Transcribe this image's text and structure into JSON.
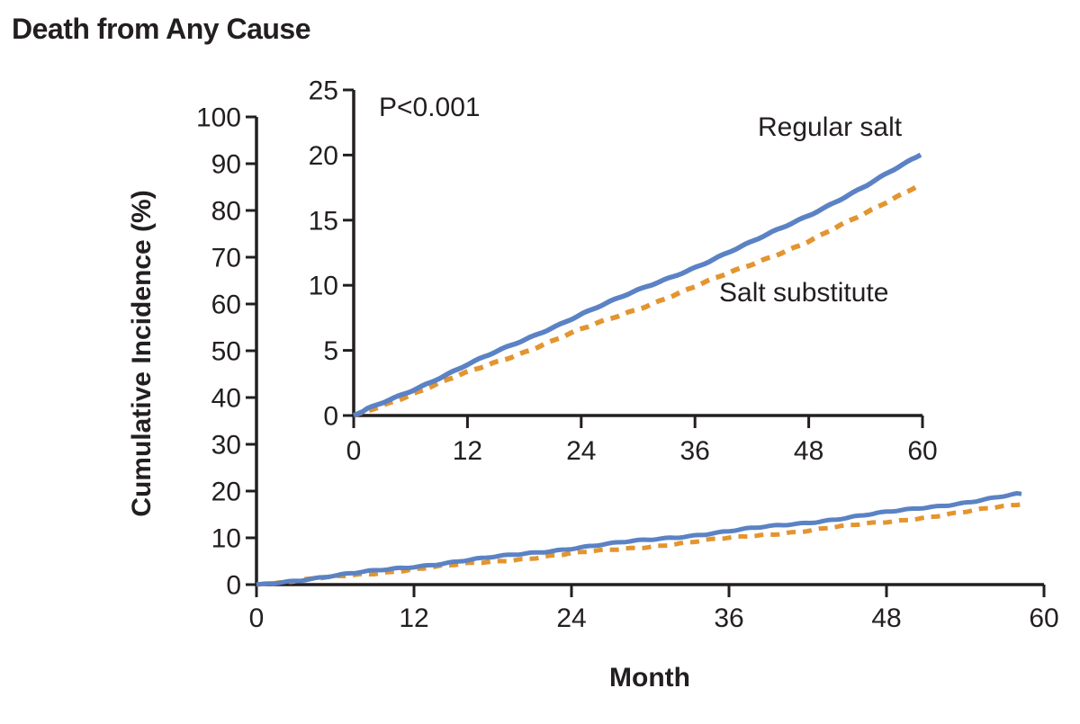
{
  "title": "Death from Any Cause",
  "colors": {
    "text": "#231f20",
    "regular_salt": "#5b82c4",
    "salt_substitute": "#e3952f"
  },
  "chart_data": [
    {
      "id": "main",
      "type": "line",
      "title": "Death from Any Cause",
      "xlabel": "Month",
      "ylabel": "Cumulative Incidence (%)",
      "xlim": [
        0,
        60
      ],
      "ylim": [
        0,
        100
      ],
      "xticks": [
        0,
        12,
        24,
        36,
        48,
        60
      ],
      "yticks": [
        0,
        10,
        20,
        30,
        40,
        50,
        60,
        70,
        80,
        90,
        100
      ],
      "grid": false,
      "x": [
        0,
        6,
        12,
        18,
        24,
        30,
        36,
        42,
        48,
        54,
        60
      ],
      "series": [
        {
          "name": "Regular salt",
          "color": "#5b82c4",
          "style": "solid",
          "values": [
            0,
            1.9,
            3.9,
            5.8,
            7.8,
            9.6,
            11.4,
            13.3,
            15.4,
            17.6,
            20.1
          ]
        },
        {
          "name": "Salt substitute",
          "color": "#e3952f",
          "style": "dashed",
          "values": [
            0,
            1.6,
            3.3,
            4.9,
            6.6,
            8.2,
            9.9,
            11.6,
            13.4,
            15.5,
            17.9
          ]
        }
      ],
      "legend_position": "inline-right"
    },
    {
      "id": "inset",
      "type": "line",
      "title": "",
      "xlabel": "",
      "ylabel": "",
      "annotation": "P<0.001",
      "xlim": [
        0,
        60
      ],
      "ylim": [
        0,
        25
      ],
      "xticks": [
        0,
        12,
        24,
        36,
        48,
        60
      ],
      "yticks": [
        0,
        5,
        10,
        15,
        20,
        25
      ],
      "grid": false,
      "x": [
        0,
        6,
        12,
        18,
        24,
        30,
        36,
        42,
        48,
        54,
        60
      ],
      "series": [
        {
          "name": "Regular salt",
          "color": "#5b82c4",
          "style": "solid",
          "values": [
            0,
            1.9,
            3.9,
            5.8,
            7.8,
            9.6,
            11.4,
            13.3,
            15.4,
            17.6,
            20.1
          ]
        },
        {
          "name": "Salt substitute",
          "color": "#e3952f",
          "style": "dashed",
          "values": [
            0,
            1.6,
            3.3,
            4.9,
            6.6,
            8.2,
            9.9,
            11.6,
            13.4,
            15.5,
            17.9
          ]
        }
      ],
      "legend_position": "inline-right"
    }
  ]
}
